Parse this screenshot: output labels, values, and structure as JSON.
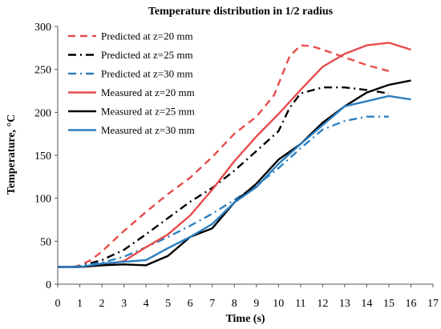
{
  "chart_data": {
    "type": "line",
    "title": "Temperature distribution  in 1/2 radius",
    "xlabel": "Time (s)",
    "ylabel": "Temperature, °C",
    "xlim": [
      0,
      17
    ],
    "ylim": [
      0,
      300
    ],
    "xticks": [
      "0",
      "1",
      "2",
      "3",
      "4",
      "5",
      "6",
      "7",
      "8",
      "9",
      "10",
      "11",
      "12",
      "13",
      "14",
      "15",
      "16",
      "17"
    ],
    "yticks": [
      "0",
      "50",
      "100",
      "150",
      "200",
      "250",
      "300"
    ],
    "grid": false,
    "legend_position": "top-left",
    "series": [
      {
        "name": "Predicted at z=20 mm",
        "color": "#e84c4c",
        "style": "dashed",
        "x": [
          0.7,
          1,
          1.5,
          2,
          2.5,
          3,
          4,
          5,
          6,
          7,
          8,
          9,
          9.8,
          10.5,
          11,
          11.5,
          12,
          13,
          14,
          15
        ],
        "y": [
          20,
          22,
          28,
          38,
          50,
          62,
          84,
          105,
          124,
          148,
          175,
          195,
          220,
          265,
          278,
          277,
          273,
          264,
          255,
          248
        ]
      },
      {
        "name": "Predicted at z=25 mm",
        "color": "#000000",
        "style": "dashdot",
        "x": [
          0.7,
          1,
          2,
          3,
          4,
          5,
          6,
          7,
          8,
          9,
          10,
          10.5,
          11,
          12,
          13,
          14,
          15
        ],
        "y": [
          20,
          21,
          28,
          40,
          58,
          77,
          96,
          112,
          132,
          155,
          178,
          205,
          222,
          229,
          229,
          226,
          222
        ]
      },
      {
        "name": "Predicted at z=30 mm",
        "color": "#2c7fc0",
        "style": "dashdot",
        "x": [
          0.7,
          1,
          2,
          3,
          4,
          5,
          6,
          7,
          8,
          9,
          10,
          11,
          12,
          13,
          14,
          15
        ],
        "y": [
          20,
          21,
          25,
          32,
          43,
          55,
          68,
          82,
          98,
          115,
          135,
          158,
          180,
          190,
          195,
          195
        ]
      },
      {
        "name": "Measured at z=20 mm",
        "color": "#e84c4c",
        "style": "solid",
        "x": [
          0,
          1,
          2,
          3,
          4,
          5,
          6,
          7,
          8,
          9,
          10,
          11,
          12,
          13,
          14,
          15,
          16
        ],
        "y": [
          20,
          20,
          22,
          27,
          43,
          58,
          80,
          110,
          143,
          172,
          198,
          226,
          253,
          268,
          278,
          281,
          273
        ]
      },
      {
        "name": "Measured at z=25 mm",
        "color": "#000000",
        "style": "solid",
        "x": [
          0,
          1,
          2,
          3,
          4,
          5,
          6,
          7,
          8,
          9,
          10,
          11,
          12,
          13,
          14,
          15,
          16
        ],
        "y": [
          20,
          20,
          22,
          23,
          22,
          33,
          55,
          65,
          95,
          117,
          145,
          163,
          188,
          207,
          223,
          232,
          237
        ]
      },
      {
        "name": "Measured at z=30 mm",
        "color": "#2c7fc0",
        "style": "solid",
        "x": [
          0,
          1,
          2,
          3,
          4,
          5,
          6,
          7,
          8,
          9,
          10,
          11,
          12,
          13,
          14,
          15,
          16
        ],
        "y": [
          20,
          20,
          24,
          26,
          28,
          42,
          55,
          70,
          95,
          113,
          140,
          163,
          185,
          207,
          213,
          219,
          215
        ]
      }
    ]
  }
}
